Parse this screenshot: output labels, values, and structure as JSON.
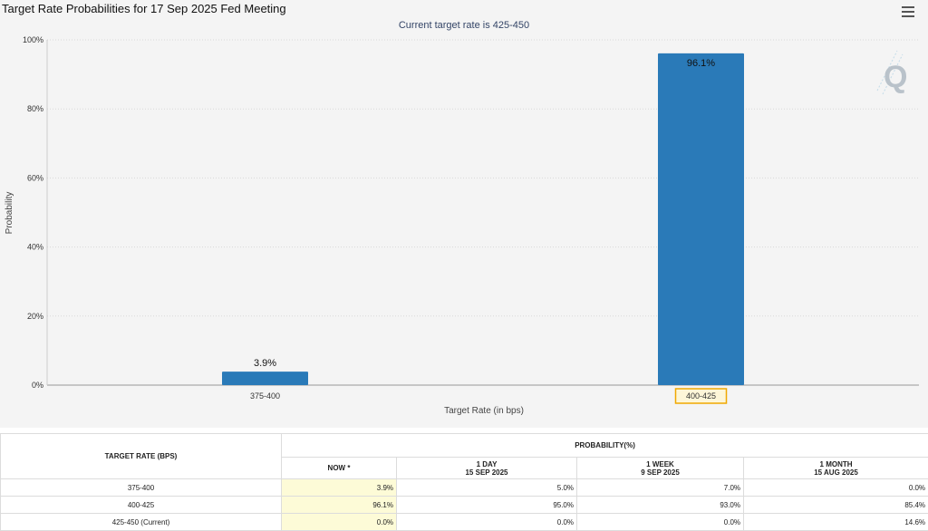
{
  "header": {
    "title": "Target Rate Probabilities for 17 Sep 2025 Fed Meeting",
    "subtitle": "Current target rate is 425-450",
    "menu_icon": "hamburger-menu-icon",
    "watermark_icon": "q-logo-icon"
  },
  "colors": {
    "bar": "#2a7ab8",
    "highlight_cell": "#fdfbd7",
    "selected_tick_border": "#f0a800"
  },
  "chart_data": {
    "type": "bar",
    "title": "Target Rate Probabilities for 17 Sep 2025 Fed Meeting",
    "subtitle": "Current target rate is 425-450",
    "xlabel": "Target Rate (in bps)",
    "ylabel": "Probability",
    "categories": [
      "375-400",
      "400-425"
    ],
    "values": [
      3.9,
      96.1
    ],
    "data_labels": [
      "3.9%",
      "96.1%"
    ],
    "ylim": [
      0,
      100
    ],
    "yticks": [
      "0%",
      "20%",
      "40%",
      "60%",
      "80%",
      "100%"
    ],
    "yticks_values": [
      0,
      20,
      40,
      60,
      80,
      100
    ],
    "highlighted_category": "400-425",
    "grid": true
  },
  "table": {
    "col_header": "TARGET RATE (BPS)",
    "group_header": "PROBABILITY(%)",
    "columns": [
      {
        "line1": "NOW *",
        "line2": ""
      },
      {
        "line1": "1 DAY",
        "line2": "15 SEP 2025"
      },
      {
        "line1": "1 WEEK",
        "line2": "9 SEP 2025"
      },
      {
        "line1": "1 MONTH",
        "line2": "15 AUG 2025"
      }
    ],
    "rows": [
      {
        "rate": "375-400",
        "values": [
          "3.9%",
          "5.0%",
          "7.0%",
          "0.0%"
        ]
      },
      {
        "rate": "400-425",
        "values": [
          "96.1%",
          "95.0%",
          "93.0%",
          "85.4%"
        ]
      },
      {
        "rate": "425-450 (Current)",
        "values": [
          "0.0%",
          "0.0%",
          "0.0%",
          "14.6%"
        ]
      }
    ]
  }
}
